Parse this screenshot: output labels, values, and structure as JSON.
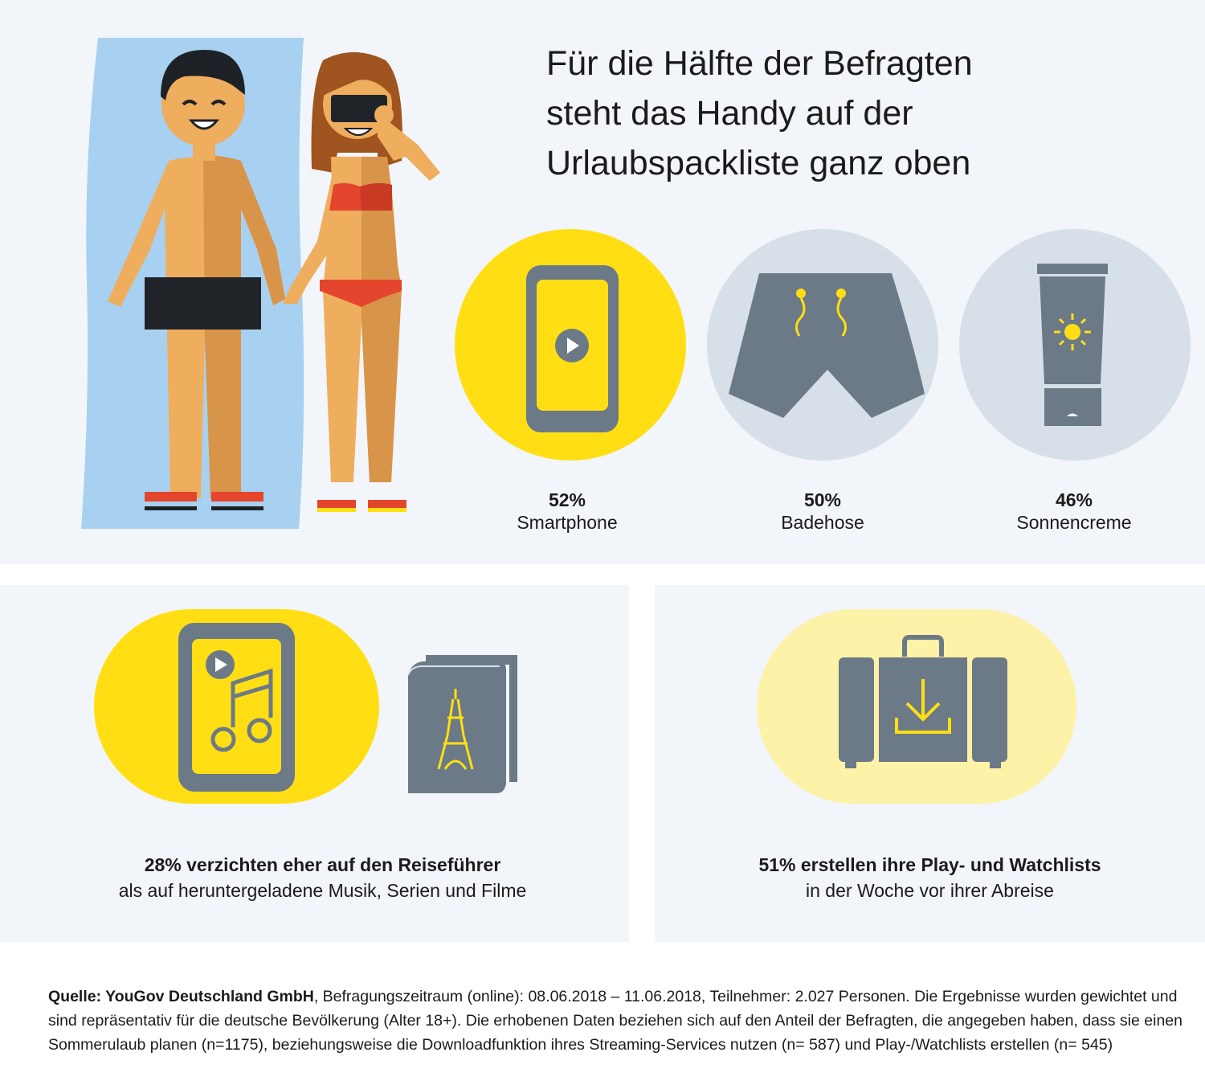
{
  "headline": {
    "lines": [
      "Für die Hälfte der Befragten",
      "steht das Handy auf der",
      "Urlaubspackliste ganz oben"
    ]
  },
  "items": [
    {
      "percent": "52%",
      "label": "Smartphone",
      "value": 52,
      "icon": "smartphone-icon"
    },
    {
      "percent": "50%",
      "label": "Badehose",
      "value": 50,
      "icon": "swim-trunks-icon"
    },
    {
      "percent": "46%",
      "label": "Sonnencreme",
      "value": 46,
      "icon": "sunscreen-icon"
    }
  ],
  "left_card": {
    "strong": "28% verzichten eher auf den Reiseführer",
    "normal": "als auf heruntergeladene Musik, Serien und Filme",
    "icons": [
      "music-phone-icon",
      "travel-guide-book-icon"
    ]
  },
  "right_card": {
    "strong": "51% erstellen ihre Play- und Watchlists",
    "normal": "in der Woche vor ihrer Abreise",
    "icons": [
      "suitcase-download-icon"
    ]
  },
  "source": {
    "label": "Quelle: YouGov Deutschland GmbH",
    "text": ", Befragungszeitraum (online): 08.06.2018 – 11.06.2018, Teilnehmer: 2.027 Personen. Die Ergebnisse wurden gewichtet und sind repräsentativ für die deutsche Bevölkerung (Alter 18+). Die erhobenen Daten beziehen sich auf den Anteil der Befragten, die angegeben haben, dass sie einen Sommerulaub planen (n=1175), beziehungsweise die Downloadfunktion ihres Streaming-Services nutzen (n= 587) und Play-/Watchlists erstellen (n= 545)"
  },
  "colors": {
    "yellow": "#ffdf14",
    "pale_yellow": "#fdf2a8",
    "grey_icon": "#6b7a86",
    "light_grey_circle": "#d7e0e8",
    "panel_bg": "#f2f5f9",
    "towel_blue": "#a8d1f1"
  }
}
